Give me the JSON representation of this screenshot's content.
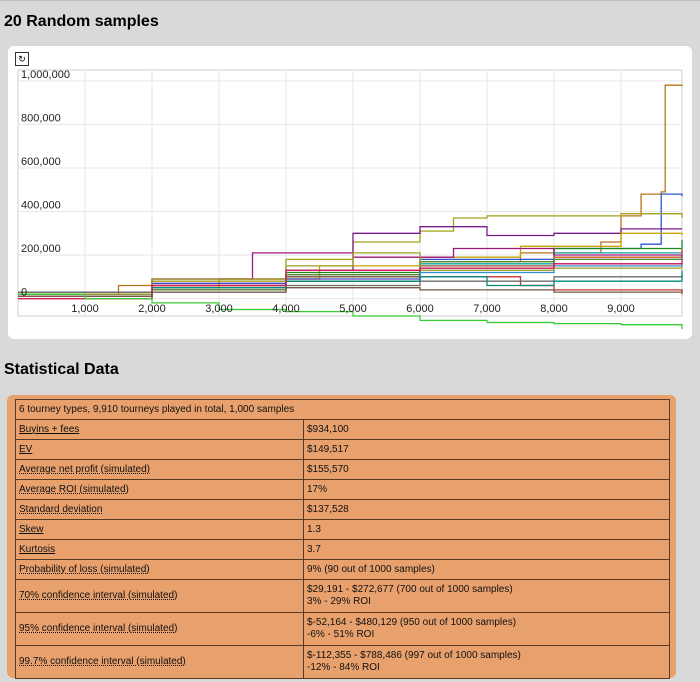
{
  "section_titles": {
    "samples": "20 Random samples",
    "stats": "Statistical Data"
  },
  "refresh_icon": "refresh-icon",
  "chart_data": {
    "type": "line",
    "title": "",
    "xlabel": "",
    "ylabel": "",
    "xlim": [
      0,
      9910
    ],
    "ylim": [
      -80000,
      1050000
    ],
    "x_ticks": [
      1000,
      2000,
      3000,
      4000,
      5000,
      6000,
      7000,
      8000,
      9000
    ],
    "x_tick_labels": [
      "1,000",
      "2,000",
      "3,000",
      "4,000",
      "5,000",
      "6,000",
      "7,000",
      "8,000",
      "9,000"
    ],
    "y_ticks": [
      0,
      200000,
      400000,
      600000,
      800000,
      1000000
    ],
    "y_tick_labels": [
      "0",
      "200,000",
      "400,000",
      "600,000",
      "800,000",
      "1,000,000"
    ],
    "grid": true,
    "series": [
      {
        "color": "#b8731e",
        "x": [
          0,
          1500,
          3000,
          4500,
          6000,
          7500,
          8700,
          9000,
          9300,
          9600,
          9660,
          9910
        ],
        "y": [
          20000,
          60000,
          90000,
          130000,
          170000,
          210000,
          260000,
          380000,
          480000,
          490000,
          980000,
          975000
        ]
      },
      {
        "color": "#2b56d6",
        "x": [
          0,
          2000,
          4000,
          6000,
          8000,
          9300,
          9600,
          9910
        ],
        "y": [
          10000,
          60000,
          110000,
          180000,
          230000,
          250000,
          480000,
          470000
        ]
      },
      {
        "color": "#a2a21a",
        "x": [
          0,
          2000,
          4000,
          5000,
          6000,
          6500,
          7000,
          8000,
          9000,
          9910
        ],
        "y": [
          30000,
          80000,
          180000,
          260000,
          310000,
          370000,
          380000,
          380000,
          390000,
          370000
        ]
      },
      {
        "color": "#7a1b8b",
        "x": [
          0,
          2000,
          4000,
          5000,
          6000,
          7000,
          8000,
          9000,
          9910
        ],
        "y": [
          20000,
          90000,
          130000,
          300000,
          330000,
          290000,
          300000,
          320000,
          320000
        ]
      },
      {
        "color": "#c7a400",
        "x": [
          0,
          2000,
          3000,
          4500,
          6000,
          7500,
          9000,
          9910
        ],
        "y": [
          0,
          50000,
          90000,
          150000,
          190000,
          240000,
          300000,
          290000
        ]
      },
      {
        "color": "#1a8a1a",
        "x": [
          0,
          2000,
          4000,
          6000,
          8000,
          9910
        ],
        "y": [
          20000,
          60000,
          120000,
          170000,
          230000,
          270000
        ]
      },
      {
        "color": "#16a2a2",
        "x": [
          0,
          2000,
          4000,
          6000,
          8000,
          9910
        ],
        "y": [
          10000,
          40000,
          100000,
          160000,
          210000,
          240000
        ]
      },
      {
        "color": "#a0197a",
        "x": [
          0,
          2000,
          3500,
          5000,
          6500,
          8000,
          9910
        ],
        "y": [
          30000,
          90000,
          210000,
          190000,
          230000,
          200000,
          220000
        ]
      },
      {
        "color": "#d05a1e",
        "x": [
          0,
          2000,
          4000,
          6000,
          8000,
          9910
        ],
        "y": [
          0,
          40000,
          80000,
          140000,
          190000,
          230000
        ]
      },
      {
        "color": "#4a4acf",
        "x": [
          0,
          2000,
          4000,
          6000,
          8000,
          9910
        ],
        "y": [
          20000,
          70000,
          90000,
          140000,
          180000,
          200000
        ]
      },
      {
        "color": "#5b8a2e",
        "x": [
          0,
          2000,
          4000,
          6000,
          8000,
          9910
        ],
        "y": [
          10000,
          40000,
          110000,
          170000,
          180000,
          190000
        ]
      },
      {
        "color": "#8c5a32",
        "x": [
          0,
          2000,
          4000,
          6000,
          8000,
          9910
        ],
        "y": [
          30000,
          60000,
          100000,
          150000,
          160000,
          170000
        ]
      },
      {
        "color": "#2d8fd6",
        "x": [
          0,
          2000,
          4000,
          6000,
          8000,
          9910
        ],
        "y": [
          20000,
          30000,
          80000,
          120000,
          150000,
          160000
        ]
      },
      {
        "color": "#c0392b",
        "x": [
          0,
          2000,
          4000,
          6000,
          7500,
          8000,
          9910
        ],
        "y": [
          10000,
          60000,
          80000,
          100000,
          60000,
          40000,
          20000
        ]
      },
      {
        "color": "#6c6c6c",
        "x": [
          0,
          2000,
          4000,
          6000,
          8000,
          9910
        ],
        "y": [
          30000,
          50000,
          60000,
          80000,
          100000,
          110000
        ]
      },
      {
        "color": "#00897b",
        "x": [
          0,
          2000,
          4000,
          6000,
          7000,
          8000,
          9910
        ],
        "y": [
          20000,
          50000,
          80000,
          100000,
          60000,
          80000,
          130000
        ]
      },
      {
        "color": "#9e9d24",
        "x": [
          0,
          2000,
          4000,
          5000,
          6000,
          8000,
          9910
        ],
        "y": [
          20000,
          90000,
          150000,
          210000,
          130000,
          140000,
          150000
        ]
      },
      {
        "color": "#d81b60",
        "x": [
          0,
          2000,
          4000,
          6000,
          8000,
          9910
        ],
        "y": [
          0,
          60000,
          130000,
          140000,
          160000,
          180000
        ]
      },
      {
        "color": "#795548",
        "x": [
          0,
          2000,
          4000,
          6000,
          8000,
          9910
        ],
        "y": [
          10000,
          30000,
          50000,
          40000,
          30000,
          40000
        ]
      },
      {
        "color": "#33cc33",
        "x": [
          0,
          1000,
          2000,
          3000,
          4000,
          5000,
          6000,
          7000,
          8000,
          9000,
          9910
        ],
        "y": [
          20000,
          0,
          -20000,
          -50000,
          -60000,
          -80000,
          -100000,
          -110000,
          -115000,
          -120000,
          -140000
        ]
      }
    ]
  },
  "stats": {
    "header": "6 tourney types, 9,910 tourneys played in total, 1,000 samples",
    "rows": [
      {
        "label": "Buyins + fees",
        "value": "$934,100",
        "value2": "",
        "style": "u"
      },
      {
        "label": "EV",
        "value": "$149,517",
        "value2": "",
        "style": "u"
      },
      {
        "label": "Average net profit (simulated)",
        "value": "$155,570",
        "value2": "",
        "style": "d"
      },
      {
        "label": "Average ROI (simulated)",
        "value": "17%",
        "value2": "",
        "style": "d"
      },
      {
        "label": "Standard deviation",
        "value": "$137,528",
        "value2": "",
        "style": "d"
      },
      {
        "label": "Skew",
        "value": "1.3",
        "value2": "",
        "style": "u"
      },
      {
        "label": "Kurtosis",
        "value": "3.7",
        "value2": "",
        "style": "u"
      },
      {
        "label": "Probability of loss (simulated)",
        "value": "9% (90 out of 1000 samples)",
        "value2": "",
        "style": "d"
      },
      {
        "label": "70% confidence interval (simulated)",
        "value": "$29,191 - $272,677 (700 out of 1000 samples)",
        "value2": "3% - 29% ROI",
        "style": "d"
      },
      {
        "label": "95% confidence interval (simulated)",
        "value": "$-52,164 - $480,129 (950 out of 1000 samples)",
        "value2": "-6% - 51% ROI",
        "style": "d"
      },
      {
        "label": "99.7% confidence interval (simulated)",
        "value": "$-112,355 - $788,486 (997 out of 1000 samples)",
        "value2": "-12% - 84% ROI",
        "style": "d"
      }
    ]
  }
}
